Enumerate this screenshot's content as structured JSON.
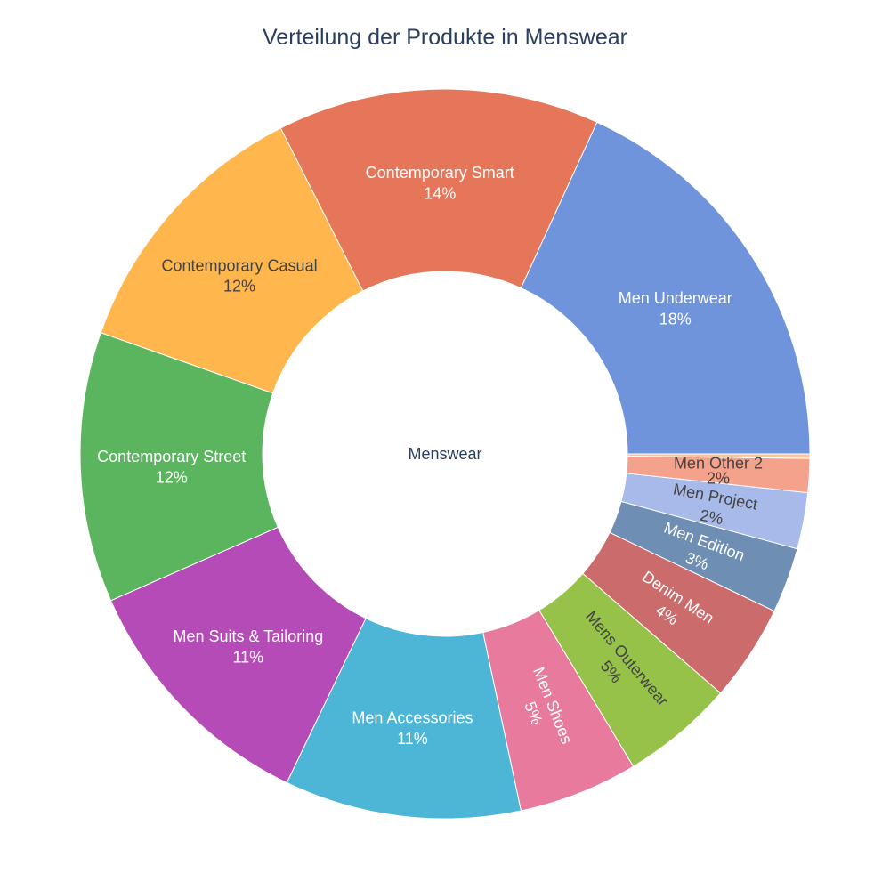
{
  "chart_data": {
    "type": "pie",
    "hole": true,
    "title": "Verteilung der Produkte in Menswear",
    "center_label": "Menswear",
    "slices": [
      {
        "label": "Men Underwear",
        "value": 18.2,
        "pct_text": "18%",
        "color": "#6f94dc",
        "text_color": "#ffffff"
      },
      {
        "label": "Contemporary Smart",
        "value": 14.3,
        "pct_text": "14%",
        "color": "#e6765a",
        "text_color": "#ffffff"
      },
      {
        "label": "Contemporary Casual",
        "value": 12.2,
        "pct_text": "12%",
        "color": "#ffb64d",
        "text_color": "#444444"
      },
      {
        "label": "Contemporary Street",
        "value": 12.0,
        "pct_text": "12%",
        "color": "#5ab55e",
        "text_color": "#ffffff"
      },
      {
        "label": "Men Suits & Tailoring",
        "value": 11.3,
        "pct_text": "11%",
        "color": "#b44bb6",
        "text_color": "#ffffff"
      },
      {
        "label": "Men Accessories",
        "value": 10.5,
        "pct_text": "11%",
        "color": "#4db5d6",
        "text_color": "#ffffff"
      },
      {
        "label": "Men Shoes",
        "value": 5.3,
        "pct_text": "5%",
        "color": "#e87b9d",
        "text_color": "#ffffff"
      },
      {
        "label": "Mens Outerwear",
        "value": 5.0,
        "pct_text": "5%",
        "color": "#96c24a",
        "text_color": "#444444"
      },
      {
        "label": "Denim Men",
        "value": 4.3,
        "pct_text": "4%",
        "color": "#cc6b6b",
        "text_color": "#ffffff"
      },
      {
        "label": "Men Edition",
        "value": 2.9,
        "pct_text": "3%",
        "color": "#6e8fb3",
        "text_color": "#ffffff"
      },
      {
        "label": "Men Project",
        "value": 2.5,
        "pct_text": "2%",
        "color": "#a8baea",
        "text_color": "#444444"
      },
      {
        "label": "Men Other 2",
        "value": 1.5,
        "pct_text": "2%",
        "color": "#f4a28c",
        "text_color": "#444444"
      },
      {
        "label": "",
        "value": 0.2,
        "pct_text": "",
        "color": "#f7c89a",
        "text_color": "#444444"
      }
    ]
  }
}
